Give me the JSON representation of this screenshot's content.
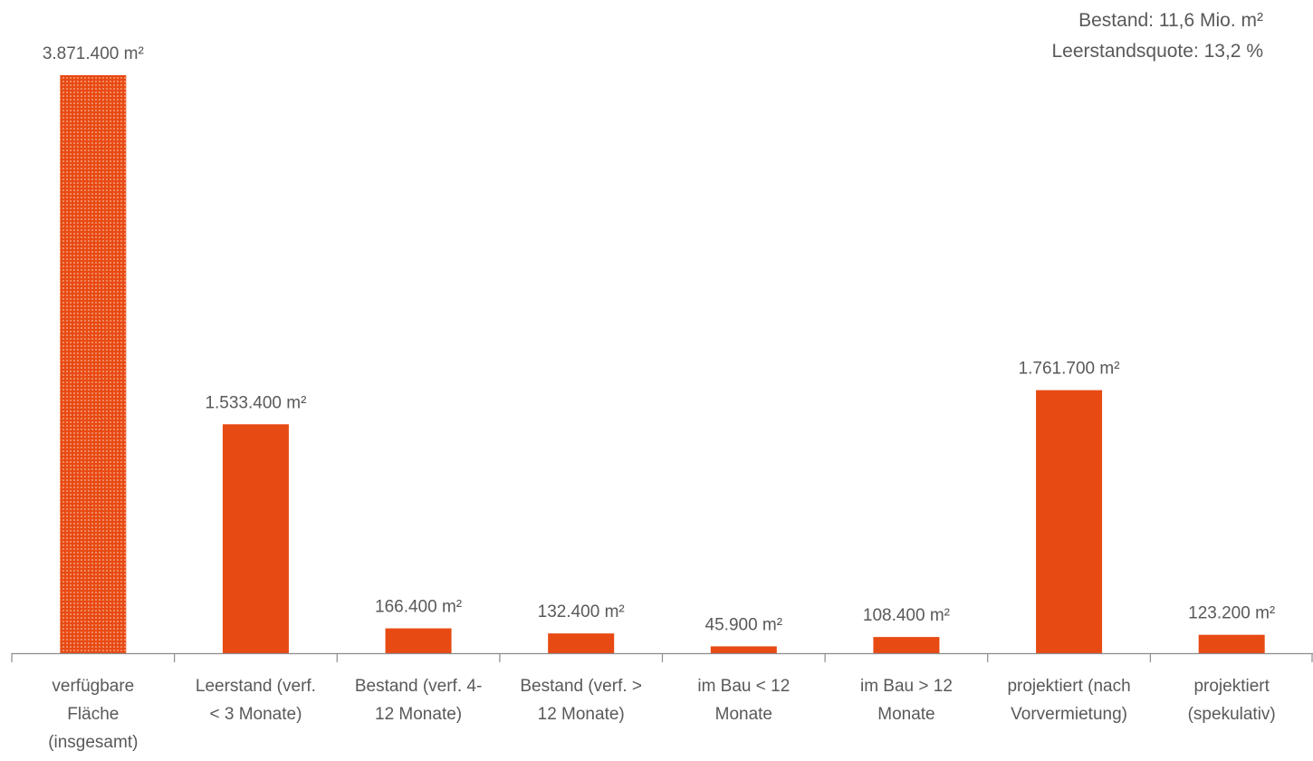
{
  "chart_data": {
    "type": "bar",
    "categories": [
      [
        "verfügbare",
        "Fläche",
        "(insgesamt)"
      ],
      [
        "Leerstand (verf.",
        "< 3 Monate)"
      ],
      [
        "Bestand (verf. 4-",
        "12 Monate)"
      ],
      [
        "Bestand (verf. >",
        "12 Monate)"
      ],
      [
        "im Bau < 12",
        "Monate"
      ],
      [
        "im Bau > 12",
        "Monate"
      ],
      [
        "projektiert (nach",
        "Vorvermietung)"
      ],
      [
        "projektiert",
        "(spekulativ)"
      ]
    ],
    "values": [
      3871400,
      1533400,
      166400,
      132400,
      45900,
      108400,
      1761700,
      123200
    ],
    "value_labels": [
      "3.871.400 m²",
      "1.533.400 m²",
      "166.400 m²",
      "132.400 m²",
      "45.900 m²",
      "108.400 m²",
      "1.761.700 m²",
      "123.200 m²"
    ],
    "bar_styles": [
      "dotted",
      "solid",
      "solid",
      "solid",
      "solid",
      "solid",
      "solid",
      "solid"
    ],
    "ylim": [
      0,
      3871400
    ],
    "xlabel": "",
    "ylabel": "",
    "grid": false,
    "colors": {
      "bar": "#E84A13",
      "dots": "#FBD7C4",
      "axis": "#8C8C8C",
      "text": "#595959"
    }
  },
  "notes": {
    "line1": "Bestand: 11,6 Mio. m²",
    "line2": "Leerstandsquote: 13,2 %"
  }
}
